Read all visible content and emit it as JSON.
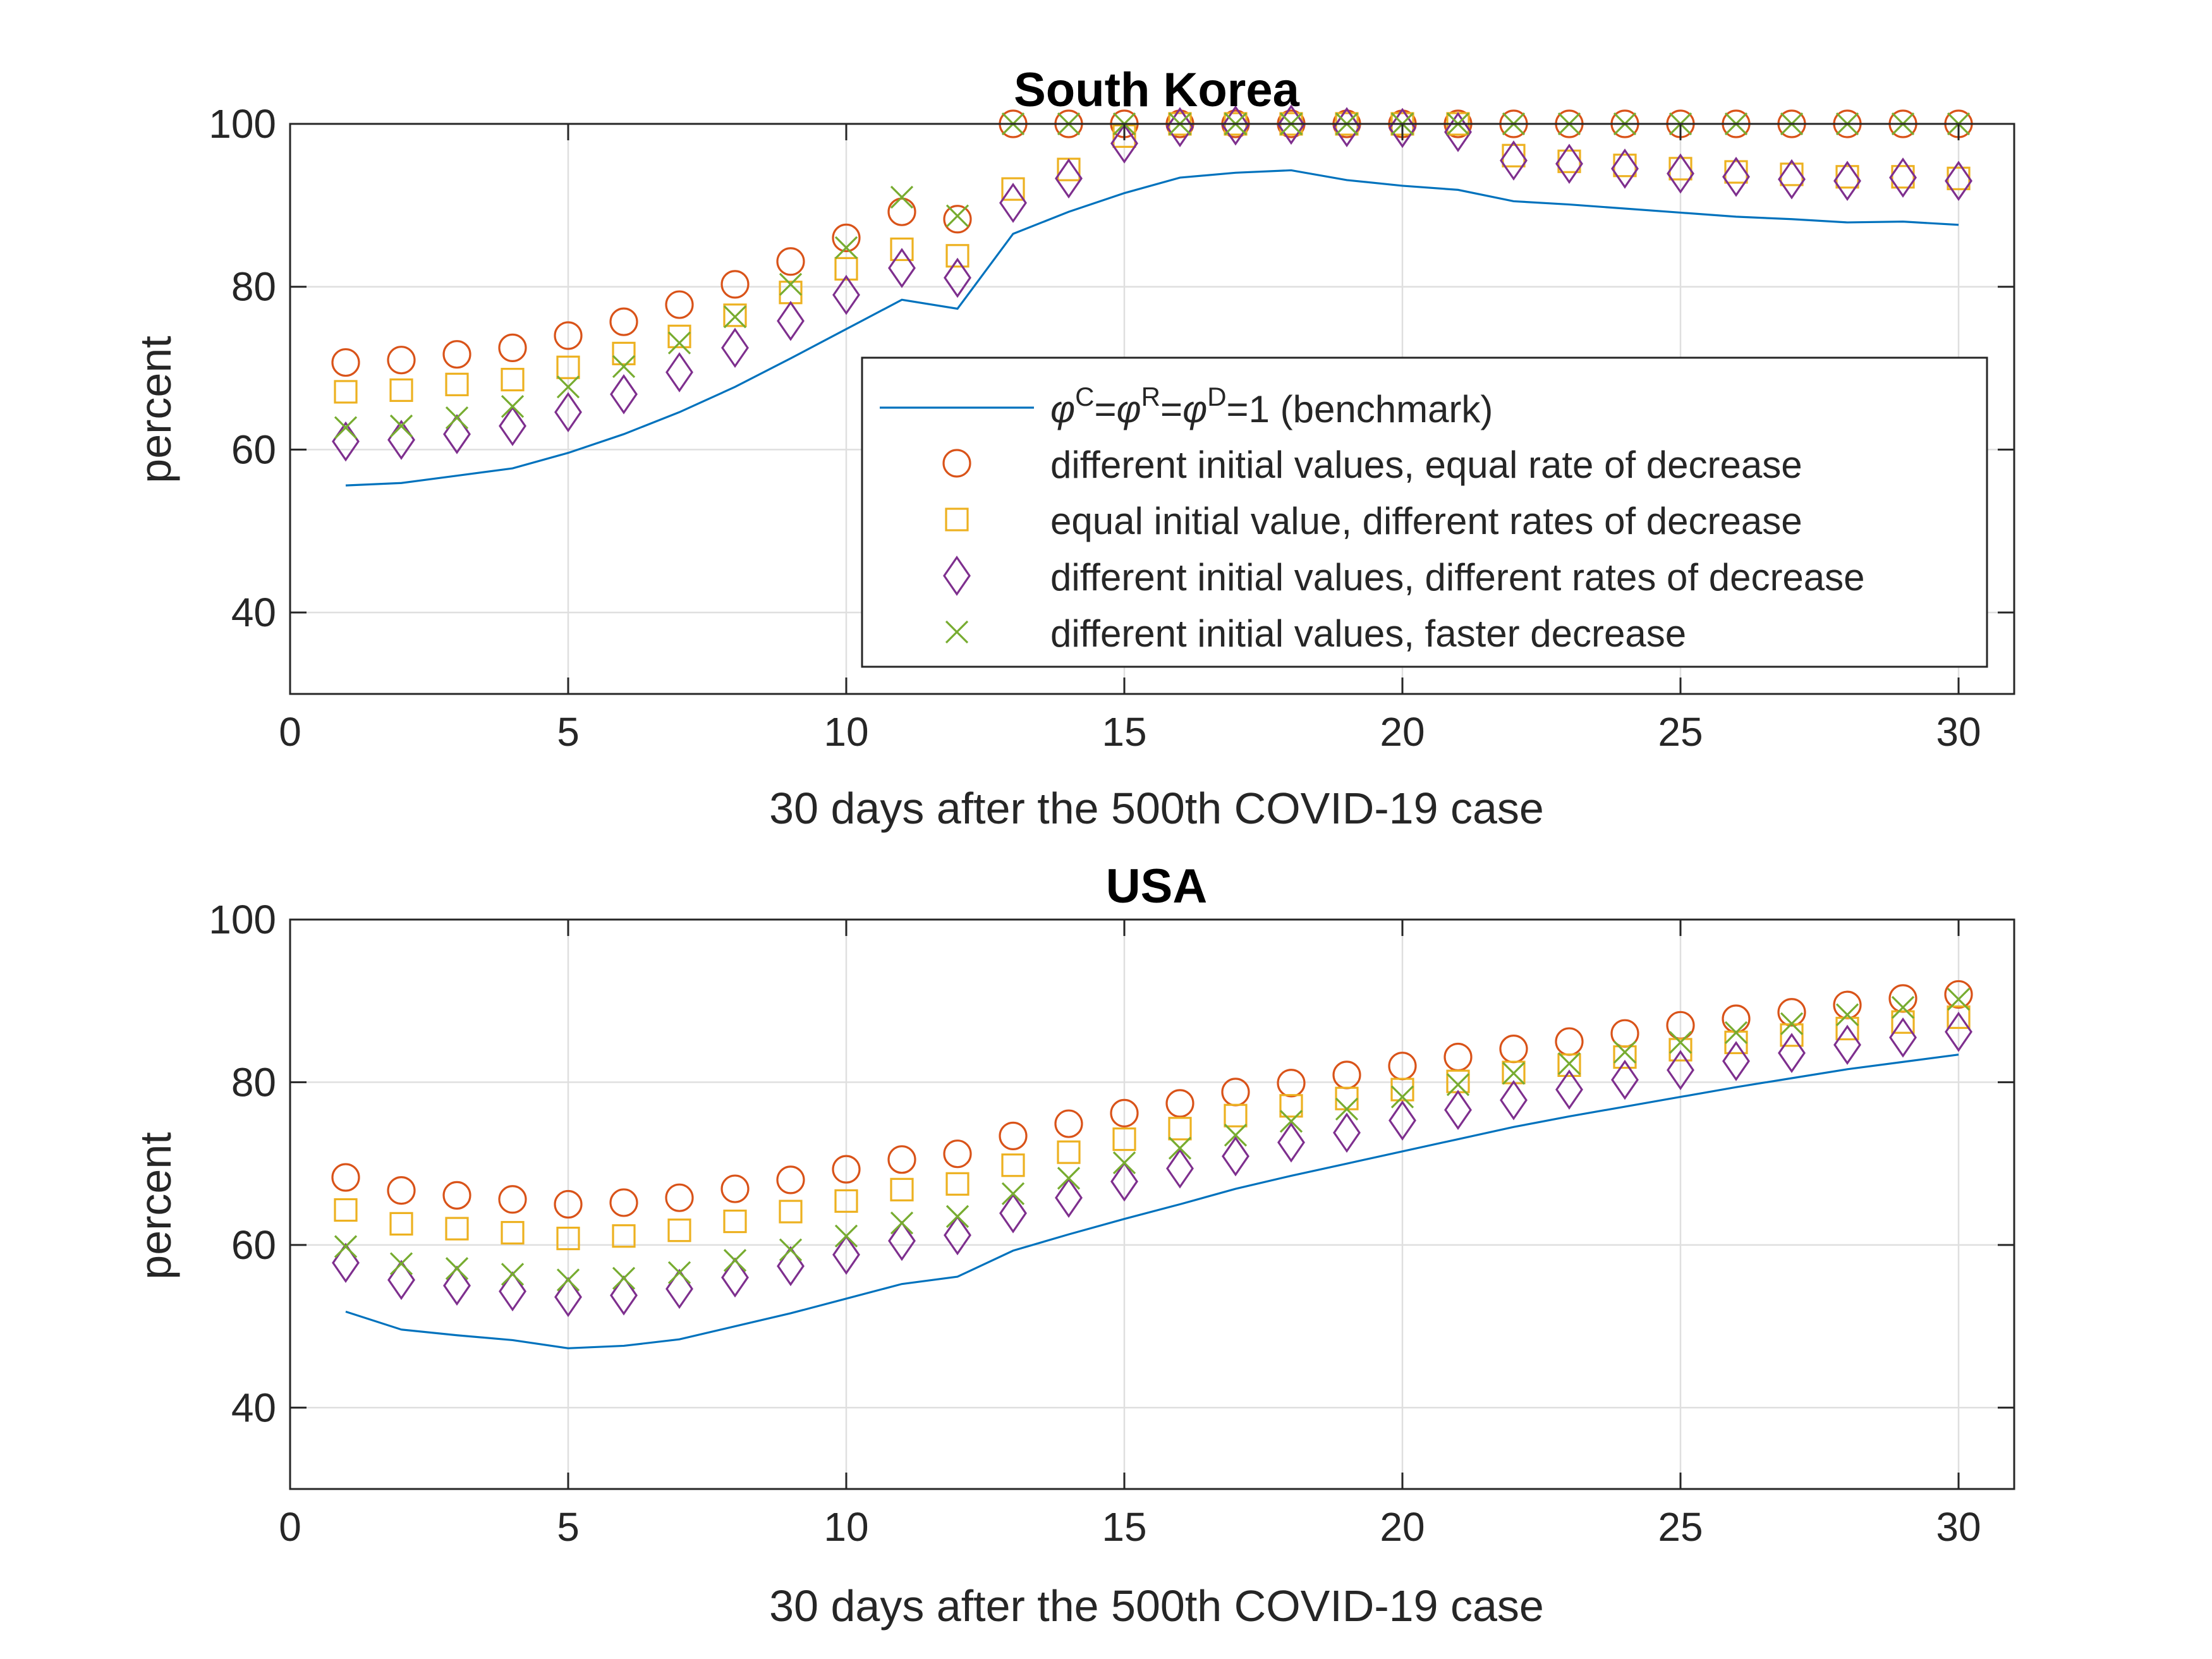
{
  "colors": {
    "grid": "#dfdfdf",
    "axis": "#262626",
    "benchmark": "#0072BD",
    "circle": "#D95319",
    "square": "#EDB120",
    "diamond": "#7E2F8E",
    "cross": "#77AC30"
  },
  "legend": {
    "placement": "inside-right, lower half of top panel",
    "items": [
      {
        "key": "benchmark",
        "marker": "line",
        "label_parts": [
          "φ",
          "C",
          "=",
          "φ",
          "R",
          "=",
          "φ",
          "D",
          "=1 (benchmark)"
        ]
      },
      {
        "key": "circle",
        "marker": "circle",
        "label": "different initial values, equal rate of decrease"
      },
      {
        "key": "square",
        "marker": "square",
        "label": "equal initial value, different rates of decrease"
      },
      {
        "key": "diamond",
        "marker": "diamond",
        "label": "different initial values, different rates of decrease"
      },
      {
        "key": "cross",
        "marker": "cross",
        "label": "different initial values, faster decrease"
      }
    ]
  },
  "chart_data": [
    {
      "type": "scatter",
      "title": "South Korea",
      "xlabel": "30 days after the 500th COVID-19 case",
      "ylabel": "percent",
      "xlim": [
        0,
        31
      ],
      "ylim": [
        30,
        100
      ],
      "xticks": [
        0,
        5,
        10,
        15,
        20,
        25,
        30
      ],
      "yticks": [
        40,
        60,
        80,
        100
      ],
      "grid": true,
      "x": [
        1,
        2,
        3,
        4,
        5,
        6,
        7,
        8,
        9,
        10,
        11,
        12,
        13,
        14,
        15,
        16,
        17,
        18,
        19,
        20,
        21,
        22,
        23,
        24,
        25,
        26,
        27,
        28,
        29,
        30
      ],
      "series": [
        {
          "key": "benchmark",
          "style": "line",
          "values": [
            55.6,
            55.9,
            56.8,
            57.7,
            59.6,
            61.9,
            64.6,
            67.7,
            71.2,
            74.8,
            78.4,
            77.3,
            86.5,
            89.2,
            91.5,
            93.4,
            94.0,
            94.3,
            93.1,
            92.4,
            91.9,
            90.5,
            90.1,
            89.6,
            89.1,
            88.6,
            88.3,
            87.9,
            88.0,
            87.6
          ]
        },
        {
          "key": "circle",
          "style": "circle",
          "values": [
            70.7,
            71.0,
            71.7,
            72.5,
            74.0,
            75.7,
            77.8,
            80.3,
            83.1,
            86.0,
            89.2,
            88.3,
            100,
            100,
            100,
            100,
            100,
            100,
            100,
            100,
            100,
            100,
            100,
            100,
            100,
            100,
            100,
            100,
            100,
            100
          ]
        },
        {
          "key": "square",
          "style": "square",
          "values": [
            67.1,
            67.3,
            68.0,
            68.6,
            70.1,
            71.8,
            73.9,
            76.5,
            79.3,
            82.2,
            84.6,
            83.8,
            92.0,
            94.4,
            98.5,
            100,
            100,
            100,
            100,
            100,
            100,
            96.1,
            95.4,
            94.9,
            94.5,
            94.1,
            93.8,
            93.5,
            93.5,
            93.3
          ]
        },
        {
          "key": "diamond",
          "style": "diamond",
          "values": [
            61.0,
            61.2,
            61.9,
            62.9,
            64.6,
            66.8,
            69.5,
            72.5,
            75.8,
            79.0,
            82.3,
            81.1,
            90.3,
            93.3,
            97.6,
            99.6,
            99.8,
            99.9,
            99.6,
            99.5,
            99.0,
            95.5,
            95.1,
            94.5,
            93.9,
            93.5,
            93.2,
            93.0,
            93.4,
            93.0
          ]
        },
        {
          "key": "cross",
          "style": "cross",
          "values": [
            62.7,
            62.9,
            63.9,
            65.3,
            67.7,
            70.2,
            73.1,
            76.3,
            80.3,
            84.8,
            91.0,
            88.7,
            100,
            100,
            100,
            100,
            100,
            100,
            100,
            100,
            100,
            100,
            100,
            100,
            100,
            100,
            100,
            100,
            100,
            100
          ]
        }
      ]
    },
    {
      "type": "scatter",
      "title": "USA",
      "xlabel": "30 days after the 500th COVID-19 case",
      "ylabel": "percent",
      "xlim": [
        0,
        31
      ],
      "ylim": [
        30,
        100
      ],
      "xticks": [
        0,
        5,
        10,
        15,
        20,
        25,
        30
      ],
      "yticks": [
        40,
        60,
        80,
        100
      ],
      "grid": true,
      "x": [
        1,
        2,
        3,
        4,
        5,
        6,
        7,
        8,
        9,
        10,
        11,
        12,
        13,
        14,
        15,
        16,
        17,
        18,
        19,
        20,
        21,
        22,
        23,
        24,
        25,
        26,
        27,
        28,
        29,
        30
      ],
      "series": [
        {
          "key": "benchmark",
          "style": "line",
          "values": [
            51.8,
            49.6,
            48.9,
            48.3,
            47.3,
            47.6,
            48.4,
            50.0,
            51.6,
            53.4,
            55.2,
            56.1,
            59.3,
            61.3,
            63.2,
            65.0,
            66.9,
            68.5,
            70.0,
            71.5,
            73.0,
            74.5,
            75.8,
            77.0,
            78.2,
            79.4,
            80.5,
            81.6,
            82.5,
            83.4
          ]
        },
        {
          "key": "circle",
          "style": "circle",
          "values": [
            68.3,
            66.7,
            66.1,
            65.6,
            65.0,
            65.2,
            65.8,
            66.9,
            68.0,
            69.3,
            70.5,
            71.2,
            73.4,
            74.9,
            76.2,
            77.4,
            78.8,
            79.9,
            80.9,
            82.0,
            83.1,
            84.1,
            85.0,
            86.0,
            87.0,
            87.8,
            88.6,
            89.5,
            90.3,
            90.8
          ]
        },
        {
          "key": "square",
          "style": "square",
          "values": [
            64.3,
            62.6,
            62.0,
            61.5,
            60.8,
            61.1,
            61.8,
            62.9,
            64.1,
            65.4,
            66.8,
            67.5,
            69.8,
            71.4,
            73.0,
            74.3,
            75.9,
            77.1,
            78.0,
            79.1,
            80.1,
            81.2,
            82.1,
            83.1,
            84.0,
            84.9,
            85.8,
            86.6,
            87.4,
            88.0
          ]
        },
        {
          "key": "diamond",
          "style": "diamond",
          "values": [
            57.8,
            55.7,
            55.0,
            54.3,
            53.6,
            53.8,
            54.6,
            56.0,
            57.4,
            58.8,
            60.5,
            61.2,
            63.9,
            65.8,
            67.8,
            69.4,
            70.9,
            72.6,
            73.8,
            75.3,
            76.6,
            77.8,
            79.1,
            80.3,
            81.5,
            82.6,
            83.6,
            84.6,
            85.5,
            86.2
          ]
        },
        {
          "key": "cross",
          "style": "cross",
          "values": [
            59.8,
            57.7,
            57.1,
            56.4,
            55.7,
            55.9,
            56.6,
            58.1,
            59.4,
            61.1,
            62.7,
            63.5,
            66.3,
            68.2,
            70.1,
            71.9,
            73.5,
            75.2,
            76.7,
            78.2,
            79.7,
            81.1,
            82.3,
            83.7,
            84.9,
            86.1,
            87.2,
            88.3,
            89.2,
            90.2
          ]
        }
      ]
    }
  ]
}
